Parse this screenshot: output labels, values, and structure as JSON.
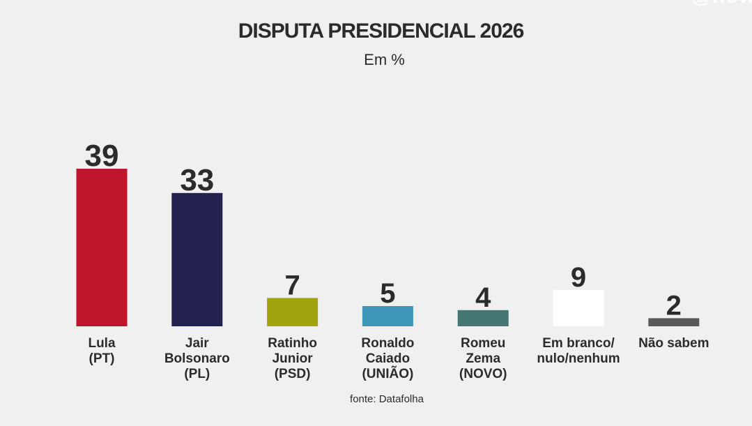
{
  "brand": {
    "logo_text": "@now"
  },
  "chart_data": {
    "type": "bar",
    "title": "DISPUTA PRESIDENCIAL 2026",
    "subtitle": "Em %",
    "categories": [
      [
        "Lula",
        "(PT)"
      ],
      [
        "Jair",
        "Bolsonaro",
        "(PL)"
      ],
      [
        "Ratinho",
        "Junior",
        "(PSD)"
      ],
      [
        "Ronaldo",
        "Caiado",
        "(UNIÃO)"
      ],
      [
        "Romeu",
        "Zema",
        "(NOVO)"
      ],
      [
        "Em branco/",
        "nulo/nenhum"
      ],
      [
        "Não sabem"
      ]
    ],
    "values": [
      39,
      33,
      7,
      5,
      4,
      9,
      2
    ],
    "colors": [
      "#c0152d",
      "#23224e",
      "#a2a20e",
      "#3d95b8",
      "#457772",
      "#ffffff",
      "#5a5a5a"
    ],
    "ylim": [
      0,
      39
    ],
    "grid": false,
    "legend": "none",
    "source": "fonte: Datafolha"
  }
}
